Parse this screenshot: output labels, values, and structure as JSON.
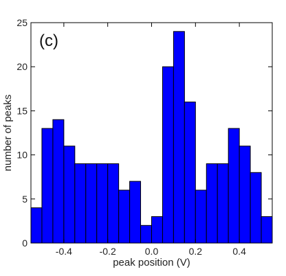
{
  "chart_data": {
    "type": "bar",
    "panel_label": "(c)",
    "xlabel": "peak position (V)",
    "ylabel": "number of peaks",
    "bin_width": 0.05,
    "xlim": [
      -0.55,
      0.55
    ],
    "ylim": [
      0,
      25
    ],
    "bins": [
      {
        "x0": -0.55,
        "x1": -0.5,
        "count": 4
      },
      {
        "x0": -0.5,
        "x1": -0.45,
        "count": 13
      },
      {
        "x0": -0.45,
        "x1": -0.4,
        "count": 14
      },
      {
        "x0": -0.4,
        "x1": -0.35,
        "count": 11
      },
      {
        "x0": -0.35,
        "x1": -0.3,
        "count": 9
      },
      {
        "x0": -0.3,
        "x1": -0.25,
        "count": 9
      },
      {
        "x0": -0.25,
        "x1": -0.2,
        "count": 9
      },
      {
        "x0": -0.2,
        "x1": -0.15,
        "count": 9
      },
      {
        "x0": -0.15,
        "x1": -0.1,
        "count": 6
      },
      {
        "x0": -0.1,
        "x1": -0.05,
        "count": 7
      },
      {
        "x0": -0.05,
        "x1": 0.0,
        "count": 2
      },
      {
        "x0": 0.0,
        "x1": 0.05,
        "count": 3
      },
      {
        "x0": 0.05,
        "x1": 0.1,
        "count": 20
      },
      {
        "x0": 0.1,
        "x1": 0.15,
        "count": 24
      },
      {
        "x0": 0.15,
        "x1": 0.2,
        "count": 16
      },
      {
        "x0": 0.2,
        "x1": 0.25,
        "count": 6
      },
      {
        "x0": 0.25,
        "x1": 0.3,
        "count": 9
      },
      {
        "x0": 0.3,
        "x1": 0.35,
        "count": 9
      },
      {
        "x0": 0.35,
        "x1": 0.4,
        "count": 13
      },
      {
        "x0": 0.4,
        "x1": 0.45,
        "count": 11
      },
      {
        "x0": 0.45,
        "x1": 0.5,
        "count": 8
      },
      {
        "x0": 0.5,
        "x1": 0.55,
        "count": 3
      }
    ],
    "xticks": [
      "-0.4",
      "-0.2",
      "0.0",
      "0.2",
      "0.4"
    ],
    "xtick_values": [
      -0.4,
      -0.2,
      0.0,
      0.2,
      0.4
    ],
    "yticks": [
      "0",
      "5",
      "10",
      "15",
      "20",
      "25"
    ],
    "ytick_values": [
      0,
      5,
      10,
      15,
      20,
      25
    ],
    "grid": false,
    "bar_color": "#0000ff",
    "edge_color": "#000000"
  }
}
